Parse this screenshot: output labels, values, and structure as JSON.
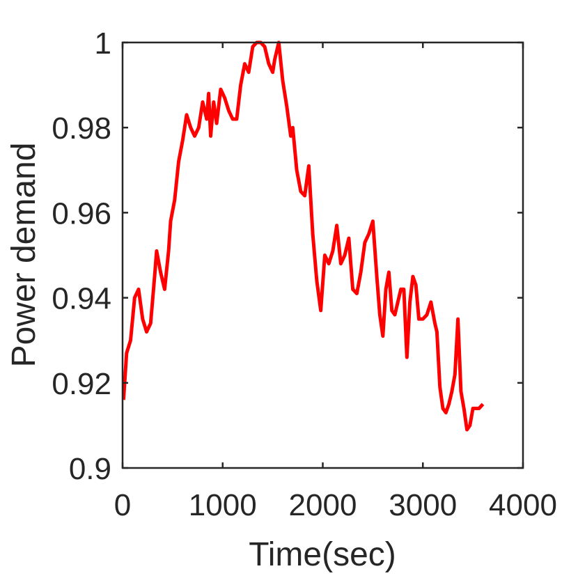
{
  "chart_data": {
    "type": "line",
    "xlabel": "Time(sec)",
    "ylabel": "Power demand",
    "xlim": [
      0,
      4000
    ],
    "ylim": [
      0.9,
      1.0
    ],
    "xticks": [
      0,
      1000,
      2000,
      3000,
      4000
    ],
    "xtick_labels": [
      "0",
      "1000",
      "2000",
      "3000",
      "4000"
    ],
    "yticks": [
      0.9,
      0.92,
      0.94,
      0.96,
      0.98,
      1.0
    ],
    "ytick_labels": [
      "0.9",
      "0.92",
      "0.94",
      "0.96",
      "0.98",
      "1"
    ],
    "grid": false,
    "box": true,
    "line_color": "#ff0000",
    "series": [
      {
        "x": [
          10,
          40,
          80,
          120,
          160,
          200,
          240,
          280,
          320,
          340,
          380,
          420,
          460,
          480,
          520,
          560,
          600,
          640,
          680,
          720,
          760,
          800,
          840,
          860,
          880,
          910,
          940,
          980,
          1020,
          1060,
          1100,
          1140,
          1180,
          1220,
          1260,
          1300,
          1340,
          1380,
          1420,
          1460,
          1500,
          1520,
          1560,
          1600,
          1640,
          1680,
          1700,
          1740,
          1780,
          1820,
          1860,
          1900,
          1940,
          1980,
          2020,
          2060,
          2100,
          2140,
          2180,
          2220,
          2260,
          2300,
          2340,
          2380,
          2420,
          2460,
          2500,
          2540,
          2570,
          2600,
          2630,
          2660,
          2690,
          2720,
          2750,
          2780,
          2810,
          2840,
          2870,
          2900,
          2930,
          2960,
          3000,
          3040,
          3080,
          3120,
          3140,
          3170,
          3200,
          3230,
          3260,
          3290,
          3320,
          3350,
          3380,
          3410,
          3440,
          3470,
          3500,
          3530,
          3560,
          3600
        ],
        "y": [
          0.916,
          0.927,
          0.93,
          0.94,
          0.942,
          0.935,
          0.932,
          0.934,
          0.945,
          0.951,
          0.946,
          0.942,
          0.951,
          0.958,
          0.963,
          0.972,
          0.977,
          0.983,
          0.98,
          0.978,
          0.98,
          0.986,
          0.982,
          0.988,
          0.978,
          0.986,
          0.981,
          0.989,
          0.987,
          0.984,
          0.982,
          0.982,
          0.99,
          0.995,
          0.993,
          0.999,
          1.0,
          1.0,
          0.999,
          0.995,
          0.993,
          0.996,
          1.0,
          0.991,
          0.985,
          0.978,
          0.98,
          0.97,
          0.965,
          0.964,
          0.971,
          0.955,
          0.944,
          0.937,
          0.95,
          0.948,
          0.951,
          0.957,
          0.948,
          0.95,
          0.954,
          0.942,
          0.941,
          0.946,
          0.953,
          0.955,
          0.958,
          0.945,
          0.936,
          0.931,
          0.942,
          0.946,
          0.937,
          0.936,
          0.939,
          0.942,
          0.942,
          0.926,
          0.939,
          0.945,
          0.943,
          0.935,
          0.935,
          0.936,
          0.939,
          0.934,
          0.932,
          0.919,
          0.914,
          0.913,
          0.915,
          0.918,
          0.922,
          0.935,
          0.918,
          0.914,
          0.909,
          0.91,
          0.914,
          0.914,
          0.914,
          0.915
        ]
      }
    ]
  }
}
